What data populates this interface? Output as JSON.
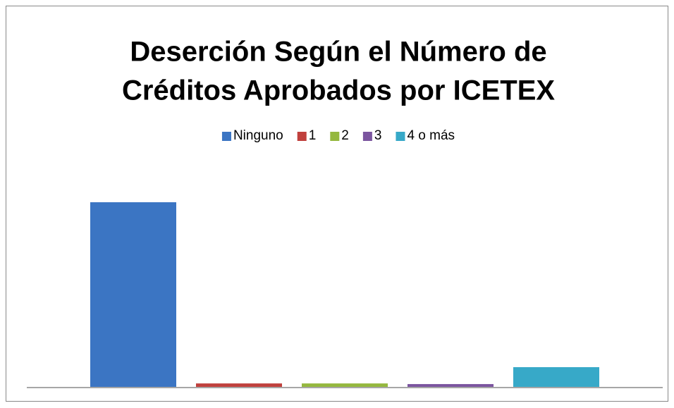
{
  "chart_data": {
    "type": "bar",
    "title": [
      "Deserción Según el Número de",
      "Créditos Aprobados por ICETEX"
    ],
    "categories": [
      "Ninguno",
      "1",
      "2",
      "3",
      "4 o más"
    ],
    "values": [
      86.2,
      1.6,
      1.6,
      1.3,
      9.2
    ],
    "colors": [
      "#3b75c3",
      "#c0403c",
      "#95b83e",
      "#7b559f",
      "#37a9c8"
    ],
    "legend": "top"
  }
}
